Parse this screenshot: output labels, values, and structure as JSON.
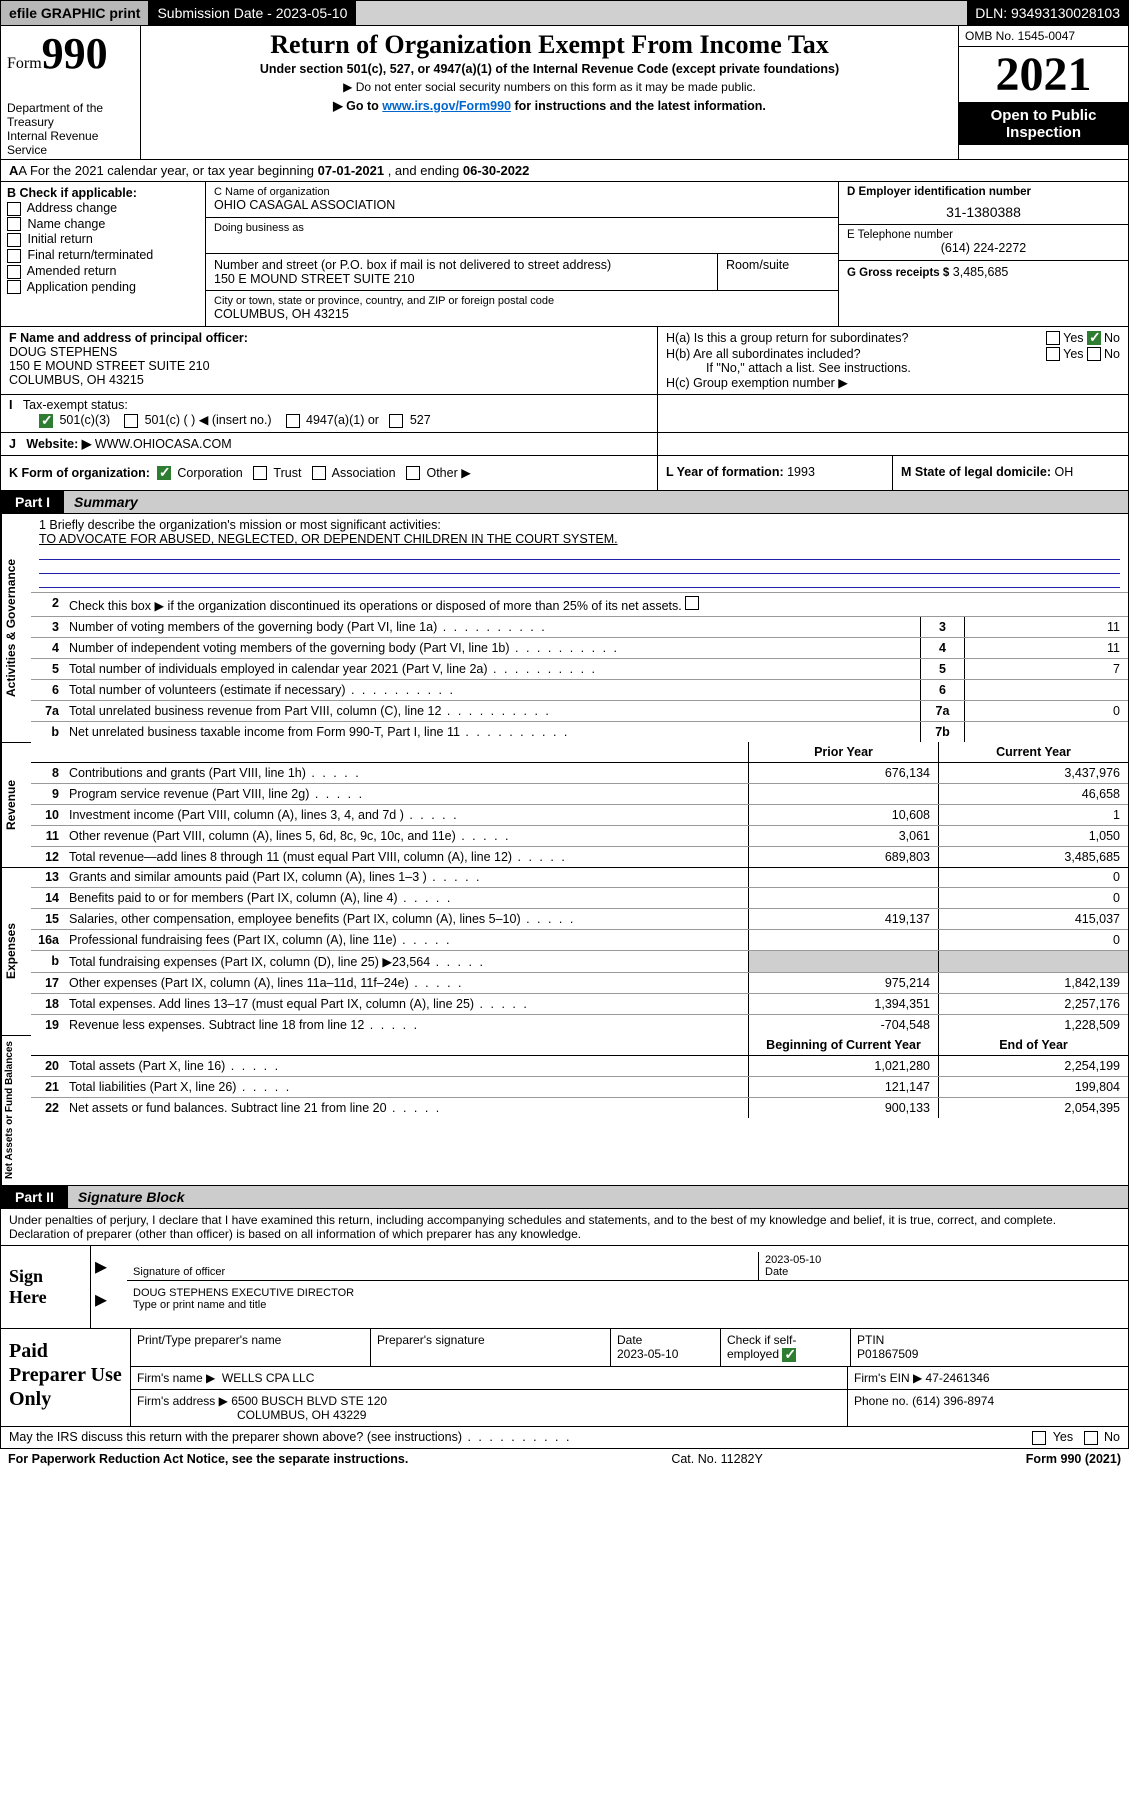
{
  "topbar": {
    "efile": "efile GRAPHIC print",
    "subdate_label": "Submission Date - 2023-05-10",
    "dln": "DLN: 93493130028103"
  },
  "header": {
    "form_label": "Form",
    "form_num": "990",
    "dept": "Department of the Treasury\nInternal Revenue Service",
    "title": "Return of Organization Exempt From Income Tax",
    "subtitle": "Under section 501(c), 527, or 4947(a)(1) of the Internal Revenue Code (except private foundations)",
    "note1": "▶ Do not enter social security numbers on this form as it may be made public.",
    "note2_pre": "▶ Go to ",
    "note2_link": "www.irs.gov/Form990",
    "note2_post": " for instructions and the latest information.",
    "omb": "OMB No. 1545-0047",
    "year": "2021",
    "otp": "Open to Public Inspection"
  },
  "lineA": {
    "text_pre": "A For the 2021 calendar year, or tax year beginning ",
    "begin": "07-01-2021",
    "text_mid": " , and ending ",
    "end": "06-30-2022"
  },
  "B": {
    "label": "B Check if applicable:",
    "opts": [
      "Address change",
      "Name change",
      "Initial return",
      "Final return/terminated",
      "Amended return",
      "Application pending"
    ]
  },
  "C": {
    "name_lbl": "C Name of organization",
    "name": "OHIO CASAGAL ASSOCIATION",
    "dba_lbl": "Doing business as",
    "addr_lbl": "Number and street (or P.O. box if mail is not delivered to street address)",
    "room_lbl": "Room/suite",
    "addr": "150 E MOUND STREET SUITE 210",
    "city_lbl": "City or town, state or province, country, and ZIP or foreign postal code",
    "city": "COLUMBUS, OH  43215"
  },
  "D": {
    "lbl": "D Employer identification number",
    "val": "31-1380388"
  },
  "E": {
    "lbl": "E Telephone number",
    "val": "(614) 224-2272"
  },
  "G": {
    "lbl": "G Gross receipts $",
    "val": "3,485,685"
  },
  "F": {
    "lbl": "F Name and address of principal officer:",
    "name": "DOUG STEPHENS",
    "addr1": "150 E MOUND STREET SUITE 210",
    "addr2": "COLUMBUS, OH  43215"
  },
  "H": {
    "a": "H(a)  Is this a group return for subordinates?",
    "b": "H(b)  Are all subordinates included?",
    "note": "If \"No,\" attach a list. See instructions.",
    "c": "H(c)  Group exemption number ▶",
    "yes": "Yes",
    "no": "No"
  },
  "I": {
    "lbl": "Tax-exempt status:",
    "opts": [
      "501(c)(3)",
      "501(c) (  ) ◀ (insert no.)",
      "4947(a)(1) or",
      "527"
    ]
  },
  "J": {
    "lbl": "Website: ▶",
    "val": "WWW.OHIOCASA.COM"
  },
  "K": {
    "lbl": "K Form of organization:",
    "opts": [
      "Corporation",
      "Trust",
      "Association",
      "Other ▶"
    ]
  },
  "L": {
    "lbl": "L Year of formation:",
    "val": "1993"
  },
  "M": {
    "lbl": "M State of legal domicile:",
    "val": "OH"
  },
  "partI": {
    "num": "Part I",
    "title": "Summary"
  },
  "summary": {
    "s1": {
      "label": "Activities & Governance",
      "briefly_lbl": "1  Briefly describe the organization's mission or most significant activities:",
      "mission": "TO ADVOCATE FOR ABUSED, NEGLECTED, OR DEPENDENT CHILDREN IN THE COURT SYSTEM.",
      "l2": "Check this box ▶  if the organization discontinued its operations or disposed of more than 25% of its net assets.",
      "lines": [
        {
          "n": "3",
          "d": "Number of voting members of the governing body (Part VI, line 1a)",
          "c": "3",
          "v": "11"
        },
        {
          "n": "4",
          "d": "Number of independent voting members of the governing body (Part VI, line 1b)",
          "c": "4",
          "v": "11"
        },
        {
          "n": "5",
          "d": "Total number of individuals employed in calendar year 2021 (Part V, line 2a)",
          "c": "5",
          "v": "7"
        },
        {
          "n": "6",
          "d": "Total number of volunteers (estimate if necessary)",
          "c": "6",
          "v": ""
        },
        {
          "n": "7a",
          "d": "Total unrelated business revenue from Part VIII, column (C), line 12",
          "c": "7a",
          "v": "0"
        },
        {
          "n": "b",
          "d": "Net unrelated business taxable income from Form 990-T, Part I, line 11",
          "c": "7b",
          "v": ""
        }
      ]
    },
    "s2": {
      "label": "Revenue",
      "hdr_prior": "Prior Year",
      "hdr_curr": "Current Year",
      "lines": [
        {
          "n": "8",
          "d": "Contributions and grants (Part VIII, line 1h)",
          "p": "676,134",
          "c": "3,437,976"
        },
        {
          "n": "9",
          "d": "Program service revenue (Part VIII, line 2g)",
          "p": "",
          "c": "46,658"
        },
        {
          "n": "10",
          "d": "Investment income (Part VIII, column (A), lines 3, 4, and 7d )",
          "p": "10,608",
          "c": "1"
        },
        {
          "n": "11",
          "d": "Other revenue (Part VIII, column (A), lines 5, 6d, 8c, 9c, 10c, and 11e)",
          "p": "3,061",
          "c": "1,050"
        },
        {
          "n": "12",
          "d": "Total revenue—add lines 8 through 11 (must equal Part VIII, column (A), line 12)",
          "p": "689,803",
          "c": "3,485,685"
        }
      ]
    },
    "s3": {
      "label": "Expenses",
      "lines": [
        {
          "n": "13",
          "d": "Grants and similar amounts paid (Part IX, column (A), lines 1–3 )",
          "p": "",
          "c": "0"
        },
        {
          "n": "14",
          "d": "Benefits paid to or for members (Part IX, column (A), line 4)",
          "p": "",
          "c": "0"
        },
        {
          "n": "15",
          "d": "Salaries, other compensation, employee benefits (Part IX, column (A), lines 5–10)",
          "p": "419,137",
          "c": "415,037"
        },
        {
          "n": "16a",
          "d": "Professional fundraising fees (Part IX, column (A), line 11e)",
          "p": "",
          "c": "0"
        },
        {
          "n": "b",
          "d": "Total fundraising expenses (Part IX, column (D), line 25) ▶23,564",
          "p": "—grey—",
          "c": "—grey—"
        },
        {
          "n": "17",
          "d": "Other expenses (Part IX, column (A), lines 11a–11d, 11f–24e)",
          "p": "975,214",
          "c": "1,842,139"
        },
        {
          "n": "18",
          "d": "Total expenses. Add lines 13–17 (must equal Part IX, column (A), line 25)",
          "p": "1,394,351",
          "c": "2,257,176"
        },
        {
          "n": "19",
          "d": "Revenue less expenses. Subtract line 18 from line 12",
          "p": "-704,548",
          "c": "1,228,509"
        }
      ]
    },
    "s4": {
      "label": "Net Assets or Fund Balances",
      "hdr_prior": "Beginning of Current Year",
      "hdr_curr": "End of Year",
      "lines": [
        {
          "n": "20",
          "d": "Total assets (Part X, line 16)",
          "p": "1,021,280",
          "c": "2,254,199"
        },
        {
          "n": "21",
          "d": "Total liabilities (Part X, line 26)",
          "p": "121,147",
          "c": "199,804"
        },
        {
          "n": "22",
          "d": "Net assets or fund balances. Subtract line 21 from line 20",
          "p": "900,133",
          "c": "2,054,395"
        }
      ]
    }
  },
  "partII": {
    "num": "Part II",
    "title": "Signature Block"
  },
  "penalties": "Under penalties of perjury, I declare that I have examined this return, including accompanying schedules and statements, and to the best of my knowledge and belief, it is true, correct, and complete. Declaration of preparer (other than officer) is based on all information of which preparer has any knowledge.",
  "sign": {
    "here": "Sign Here",
    "sig_lbl": "Signature of officer",
    "date_lbl": "Date",
    "date": "2023-05-10",
    "name": "DOUG STEPHENS  EXECUTIVE DIRECTOR",
    "name_lbl": "Type or print name and title"
  },
  "prep": {
    "lab": "Paid Preparer Use Only",
    "r1": {
      "c1": "Print/Type preparer's name",
      "c2": "Preparer's signature",
      "c3l": "Date",
      "c3": "2023-05-10",
      "c4": "Check           if self-employed",
      "c5l": "PTIN",
      "c5": "P01867509"
    },
    "r2": {
      "c1l": "Firm's name     ▶",
      "c1": "WELLS CPA LLC",
      "c2l": "Firm's EIN ▶",
      "c2": "47-2461346"
    },
    "r3": {
      "c1l": "Firm's address ▶",
      "c1a": "6500 BUSCH BLVD STE 120",
      "c1b": "COLUMBUS, OH  43229",
      "c2l": "Phone no.",
      "c2": "(614) 396-8974"
    }
  },
  "discuss": {
    "q": "May the IRS discuss this return with the preparer shown above? (see instructions)",
    "yes": "Yes",
    "no": "No"
  },
  "foot": {
    "l": "For Paperwork Reduction Act Notice, see the separate instructions.",
    "m": "Cat. No. 11282Y",
    "r": "Form 990 (2021)"
  }
}
